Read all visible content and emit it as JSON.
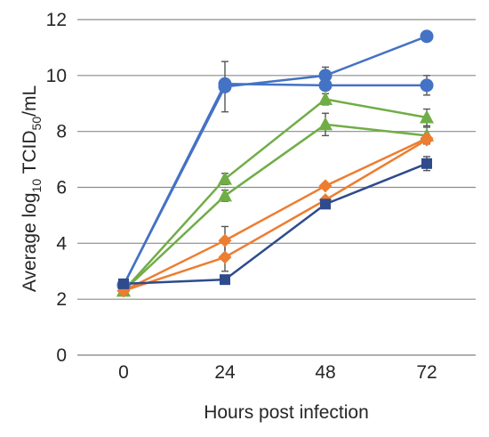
{
  "chart_data": {
    "type": "line",
    "title": "",
    "xlabel": "Hours post infection",
    "ylabel": {
      "prefix": "Average log",
      "sub1": "10",
      "middle": " TCID",
      "sub2": "50",
      "suffix": "/mL"
    },
    "x": [
      0,
      24,
      48,
      72
    ],
    "x_tick_labels": [
      "0",
      "24",
      "48",
      "72"
    ],
    "ylim": [
      0,
      12
    ],
    "y_ticks": [
      0,
      2,
      4,
      6,
      8,
      10,
      12
    ],
    "y_tick_labels": [
      "0",
      "2",
      "4",
      "6",
      "8",
      "10",
      "12"
    ],
    "grid": "horizontal",
    "legend": "none",
    "series": [
      {
        "color": "#4472c4",
        "marker": "circle",
        "values": [
          2.5,
          9.6,
          10.0,
          11.4
        ],
        "errors": [
          0.1,
          0.9,
          0.3,
          0.1
        ]
      },
      {
        "color": "#4472c4",
        "marker": "circle",
        "values": [
          2.5,
          9.7,
          9.65,
          9.65
        ],
        "errors": [
          0.1,
          0.1,
          0.1,
          0.35
        ]
      },
      {
        "color": "#70ad47",
        "marker": "triangle",
        "values": [
          2.3,
          6.3,
          9.15,
          8.5
        ],
        "errors": [
          0.1,
          0.2,
          0.2,
          0.3
        ]
      },
      {
        "color": "#70ad47",
        "marker": "triangle",
        "values": [
          2.3,
          5.7,
          8.25,
          7.85
        ],
        "errors": [
          0.1,
          0.2,
          0.4,
          0.3
        ]
      },
      {
        "color": "#ed7d31",
        "marker": "diamond",
        "values": [
          2.3,
          4.1,
          6.05,
          7.75
        ],
        "errors": [
          0.1,
          0.5,
          0.1,
          0.1
        ]
      },
      {
        "color": "#ed7d31",
        "marker": "diamond",
        "values": [
          2.3,
          3.5,
          5.55,
          7.7
        ],
        "errors": [
          0.1,
          0.5,
          0.1,
          0.1
        ]
      },
      {
        "color": "#2f4b8c",
        "marker": "square",
        "values": [
          2.55,
          2.7,
          5.4,
          6.85
        ],
        "errors": [
          0.1,
          0.1,
          0.1,
          0.25
        ]
      }
    ]
  }
}
